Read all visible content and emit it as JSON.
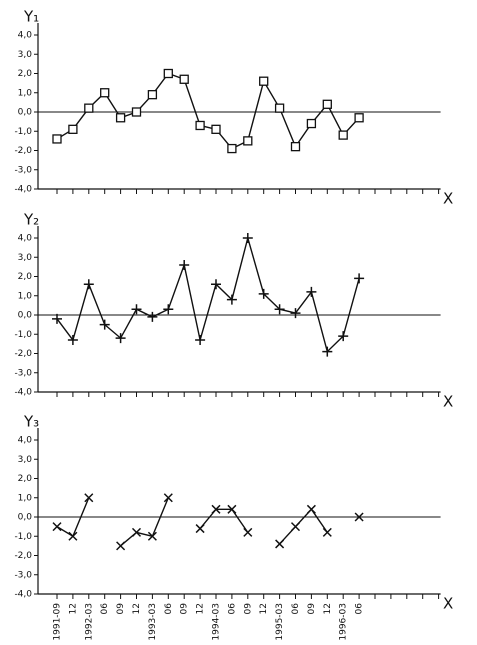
{
  "chart_data": [
    {
      "type": "line",
      "y_label": "Y₁",
      "x_label": "X",
      "marker": "square",
      "zero_line": true,
      "ylim": [
        -4,
        4
      ],
      "yticks": [
        {
          "value": -4,
          "label": "-4,0"
        },
        {
          "value": -3,
          "label": "-3,0"
        },
        {
          "value": -2,
          "label": "-2,0"
        },
        {
          "value": -1,
          "label": "-1,0"
        },
        {
          "value": 0,
          "label": "0,0"
        },
        {
          "value": 1,
          "label": "1,0"
        },
        {
          "value": 2,
          "label": "2,0"
        },
        {
          "value": 3,
          "label": "3,0"
        },
        {
          "value": 4,
          "label": "4,0"
        }
      ],
      "series": [
        {
          "color": "#111111",
          "values": [
            -1.4,
            -0.9,
            0.2,
            1.0,
            -0.3,
            0.0,
            0.9,
            2.0,
            1.7,
            -0.7,
            -0.9,
            -1.9,
            -1.5,
            1.6,
            0.2,
            -1.8,
            -0.6,
            0.4,
            -1.2,
            -0.3,
            null,
            null,
            null,
            null,
            null
          ]
        }
      ]
    },
    {
      "type": "line",
      "y_label": "Y₂",
      "x_label": "X",
      "marker": "plus",
      "zero_line": true,
      "ylim": [
        -4,
        4
      ],
      "yticks": [
        {
          "value": -4,
          "label": "-4,0"
        },
        {
          "value": -3,
          "label": "-3,0"
        },
        {
          "value": -2,
          "label": "-2,0"
        },
        {
          "value": -1,
          "label": "-1,0"
        },
        {
          "value": 0,
          "label": "0,0"
        },
        {
          "value": 1,
          "label": "1,0"
        },
        {
          "value": 2,
          "label": "2,0"
        },
        {
          "value": 3,
          "label": "3,0"
        },
        {
          "value": 4,
          "label": "4,0"
        }
      ],
      "series": [
        {
          "color": "#111111",
          "values": [
            -0.2,
            -1.3,
            1.6,
            -0.5,
            -1.2,
            0.3,
            -0.1,
            0.3,
            2.6,
            -1.3,
            1.6,
            0.8,
            4.0,
            1.1,
            0.3,
            0.1,
            1.2,
            -1.9,
            -1.1,
            1.9,
            null,
            null,
            null,
            null,
            null
          ]
        }
      ]
    },
    {
      "type": "line",
      "y_label": "Y₃",
      "x_label": "X",
      "marker": "cross",
      "zero_line": true,
      "ylim": [
        -4,
        4
      ],
      "yticks": [
        {
          "value": -4,
          "label": "-4,0"
        },
        {
          "value": -3,
          "label": "-3,0"
        },
        {
          "value": -2,
          "label": "-2,0"
        },
        {
          "value": -1,
          "label": "-1,0"
        },
        {
          "value": 0,
          "label": "0,0"
        },
        {
          "value": 1,
          "label": "1,0"
        },
        {
          "value": 2,
          "label": "2,0"
        },
        {
          "value": 3,
          "label": "3,0"
        },
        {
          "value": 4,
          "label": "4,0"
        }
      ],
      "categories": [
        "1991-09",
        "12",
        "1992-03",
        "06",
        "09",
        "12",
        "1993-03",
        "06",
        "09",
        "12",
        "1994-03",
        "06",
        "09",
        "12",
        "1995-03",
        "06",
        "09",
        "12",
        "1996-03",
        "06",
        null,
        null,
        null,
        null,
        null
      ],
      "series": [
        {
          "color": "#111111",
          "values": [
            -0.5,
            -1.0,
            1.0,
            null,
            -1.5,
            -0.8,
            -1.0,
            1.0,
            null,
            -0.6,
            0.4,
            0.4,
            -0.8,
            null,
            -1.4,
            -0.5,
            0.4,
            -0.8,
            null,
            0.0,
            null,
            null,
            null,
            null,
            null
          ]
        }
      ]
    }
  ]
}
